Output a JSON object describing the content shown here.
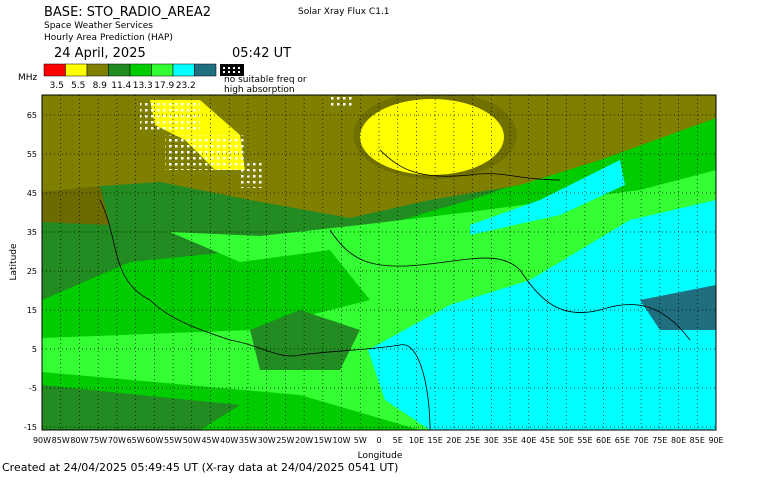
{
  "header": {
    "base": "BASE: STO_RADIO_AREA2",
    "service": "Space Weather Services",
    "product": "Hourly Area Prediction (HAP)",
    "date": "24 April, 2025",
    "time": "05:42 UT",
    "xray": "Solar Xray Flux C1.1"
  },
  "legend": {
    "unit": "MHz",
    "colors": [
      "#ff0000",
      "#ffff00",
      "#808000",
      "#228b22",
      "#00cc00",
      "#33ff33",
      "#00ffff",
      "#1f6f80"
    ],
    "values": [
      "3.5",
      "5.5",
      "8.9",
      "11.4",
      "13.3",
      "17.9",
      "23.2"
    ],
    "no_freq_line1": "no suitable freq or",
    "no_freq_line2": "high absorption"
  },
  "map": {
    "y_label": "Latitude",
    "x_label": "Longitude",
    "yticks": [
      "65",
      "55",
      "45",
      "35",
      "25",
      "15",
      "5",
      "-5",
      "-15"
    ],
    "xticks": [
      "90W",
      "85W",
      "80W",
      "75W",
      "70W",
      "65W",
      "60W",
      "55W",
      "50W",
      "45W",
      "40W",
      "35W",
      "30W",
      "25W",
      "20W",
      "15W",
      "10W",
      "5W",
      "0",
      "5E",
      "10E",
      "15E",
      "20E",
      "25E",
      "30E",
      "35E",
      "40E",
      "45E",
      "50E",
      "55E",
      "60E",
      "65E",
      "70E",
      "75E",
      "80E",
      "85E",
      "90E"
    ]
  },
  "footer": {
    "created": "Created at 24/04/2025 05:49:45 UT (X-ray data at 24/04/2025 0541 UT)"
  }
}
